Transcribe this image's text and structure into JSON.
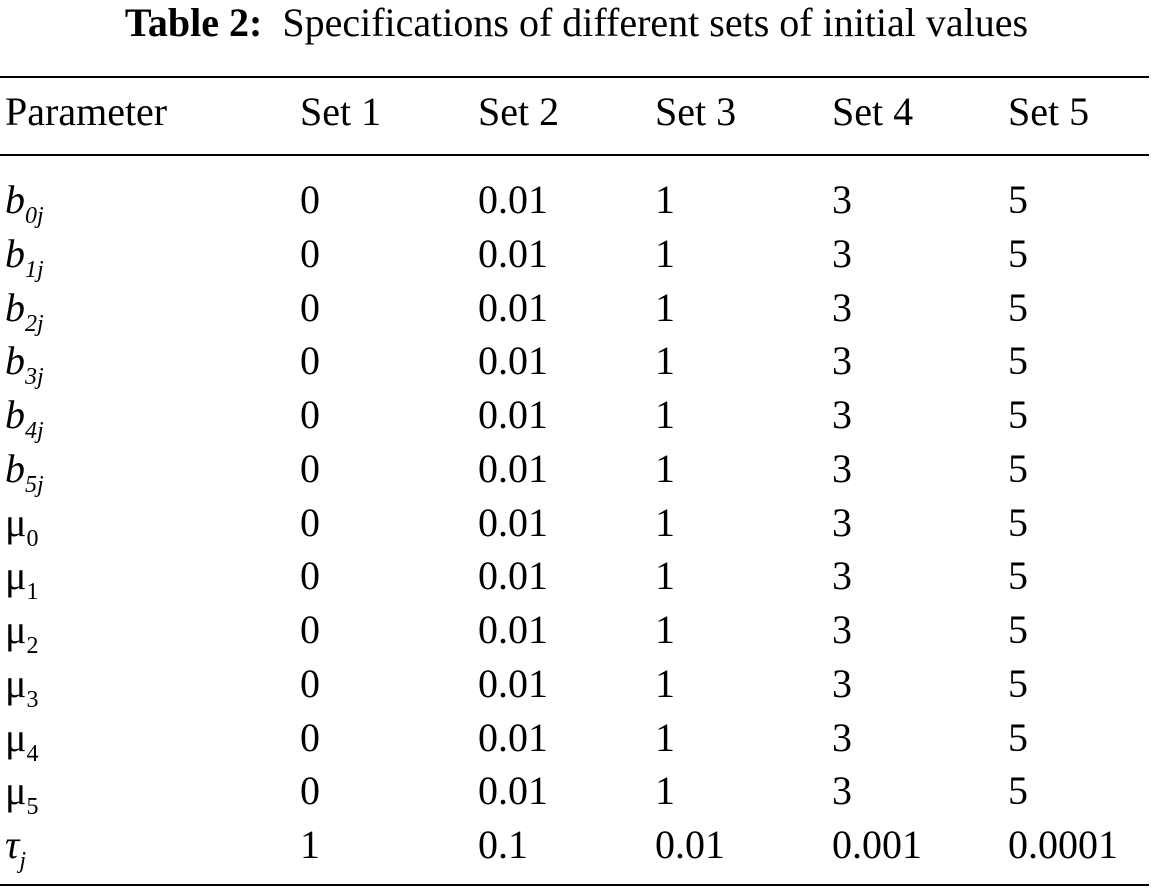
{
  "table": {
    "caption": {
      "label": "Table 2:",
      "text": "Specifications of different sets of initial values"
    },
    "header": [
      "Parameter",
      "Set 1",
      "Set 2",
      "Set 3",
      "Set 4",
      "Set 5"
    ],
    "rows": [
      [
        {
          "base": "b",
          "sub": "0j"
        },
        "0",
        "0.01",
        "1",
        "3",
        "5"
      ],
      [
        {
          "base": "b",
          "sub": "1j"
        },
        "0",
        "0.01",
        "1",
        "3",
        "5"
      ],
      [
        {
          "base": "b",
          "sub": "2j"
        },
        "0",
        "0.01",
        "1",
        "3",
        "5"
      ],
      [
        {
          "base": "b",
          "sub": "3j"
        },
        "0",
        "0.01",
        "1",
        "3",
        "5"
      ],
      [
        {
          "base": "b",
          "sub": "4j"
        },
        "0",
        "0.01",
        "1",
        "3",
        "5"
      ],
      [
        {
          "base": "b",
          "sub": "5j"
        },
        "0",
        "0.01",
        "1",
        "3",
        "5"
      ],
      [
        {
          "base": "μ",
          "sub": "0"
        },
        "0",
        "0.01",
        "1",
        "3",
        "5"
      ],
      [
        {
          "base": "μ",
          "sub": "1"
        },
        "0",
        "0.01",
        "1",
        "3",
        "5"
      ],
      [
        {
          "base": "μ",
          "sub": "2"
        },
        "0",
        "0.01",
        "1",
        "3",
        "5"
      ],
      [
        {
          "base": "μ",
          "sub": "3"
        },
        "0",
        "0.01",
        "1",
        "3",
        "5"
      ],
      [
        {
          "base": "μ",
          "sub": "4"
        },
        "0",
        "0.01",
        "1",
        "3",
        "5"
      ],
      [
        {
          "base": "μ",
          "sub": "5"
        },
        "0",
        "0.01",
        "1",
        "3",
        "5"
      ],
      [
        {
          "base": "τ",
          "sub": "j"
        },
        "1",
        "0.1",
        "0.01",
        "0.001",
        "0.0001"
      ]
    ]
  }
}
